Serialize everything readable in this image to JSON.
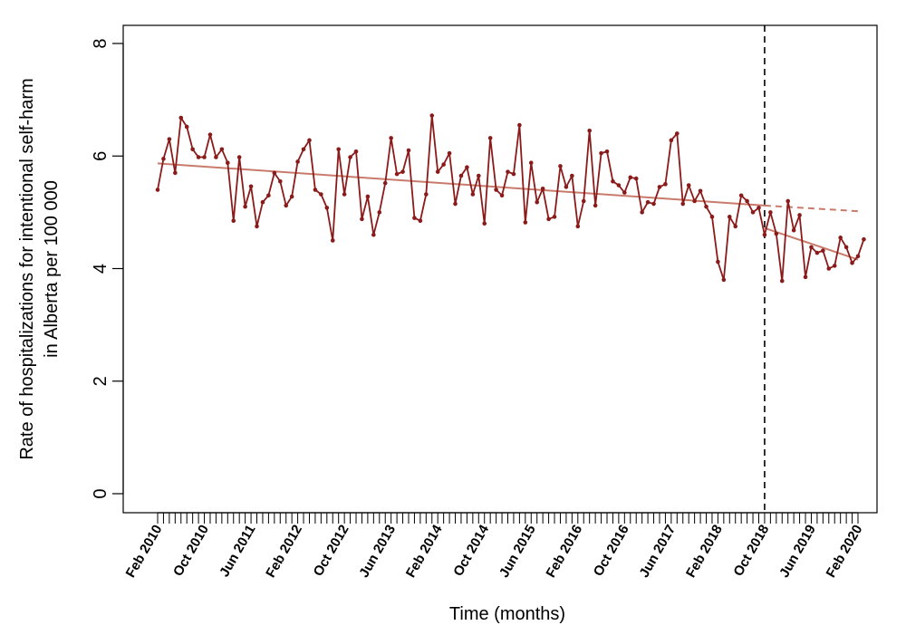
{
  "chart_data": {
    "type": "line",
    "xlabel": "Time (months)",
    "ylabel_line1": "Rate of hospitalizations for intentional self-harm",
    "ylabel_line2": "in Alberta per 100 000",
    "ylim": [
      0,
      8
    ],
    "yticks": [
      0,
      2,
      4,
      6,
      8
    ],
    "x_start": "Feb 2010",
    "x_end": "Feb 2020",
    "x_tick_labels": [
      "Feb 2010",
      "Oct 2010",
      "Jun 2011",
      "Feb 2012",
      "Oct 2012",
      "Jun 2013",
      "Feb 2014",
      "Oct 2014",
      "Jun 2015",
      "Feb 2016",
      "Oct 2016",
      "Jun 2017",
      "Feb 2018",
      "Oct 2018",
      "Jun 2019",
      "Feb 2020"
    ],
    "intervention": "Oct 2018",
    "grid": false,
    "series": [
      {
        "type": "observed",
        "color": "#8b1a1a",
        "values": [
          5.4,
          5.95,
          6.3,
          5.7,
          6.68,
          6.52,
          6.12,
          5.98,
          5.98,
          6.38,
          5.98,
          6.12,
          5.88,
          4.85,
          5.98,
          5.1,
          5.46,
          4.75,
          5.18,
          5.3,
          5.7,
          5.55,
          5.12,
          5.28,
          5.9,
          6.12,
          6.28,
          5.4,
          5.32,
          5.08,
          4.5,
          6.12,
          5.32,
          5.98,
          6.08,
          4.88,
          5.28,
          4.6,
          5.0,
          5.52,
          6.32,
          5.68,
          5.72,
          6.1,
          4.9,
          4.85,
          5.32,
          6.72,
          5.72,
          5.85,
          6.05,
          5.15,
          5.65,
          5.8,
          5.32,
          5.65,
          4.8,
          6.32,
          5.4,
          5.3,
          5.72,
          5.68,
          6.55,
          4.82,
          5.88,
          5.18,
          5.42,
          4.88,
          4.92,
          5.82,
          5.45,
          5.65,
          4.75,
          5.2,
          6.45,
          5.12,
          6.05,
          6.08,
          5.55,
          5.48,
          5.35,
          5.62,
          5.6,
          5.0,
          5.18,
          5.15,
          5.45,
          5.5,
          6.28,
          6.4,
          5.15,
          5.48,
          5.2,
          5.38,
          5.1,
          4.92,
          4.12,
          3.8,
          4.92,
          4.75,
          5.3,
          5.2,
          5.0,
          5.08,
          4.6,
          5.0,
          4.62,
          3.78,
          5.2,
          4.68,
          4.95,
          3.85,
          4.38,
          4.28,
          4.32,
          4.0,
          4.05,
          4.55,
          4.38,
          4.1,
          4.22,
          4.52
        ]
      },
      {
        "type": "trend-pre",
        "color": "#c97b6b",
        "start": 5.87,
        "end": 5.12
      },
      {
        "type": "counterfactual",
        "color": "#c97b6b",
        "start": 5.12,
        "end": 5.02
      },
      {
        "type": "trend-post",
        "color": "#c97b6b",
        "start": 4.72,
        "end": 4.16
      }
    ]
  }
}
